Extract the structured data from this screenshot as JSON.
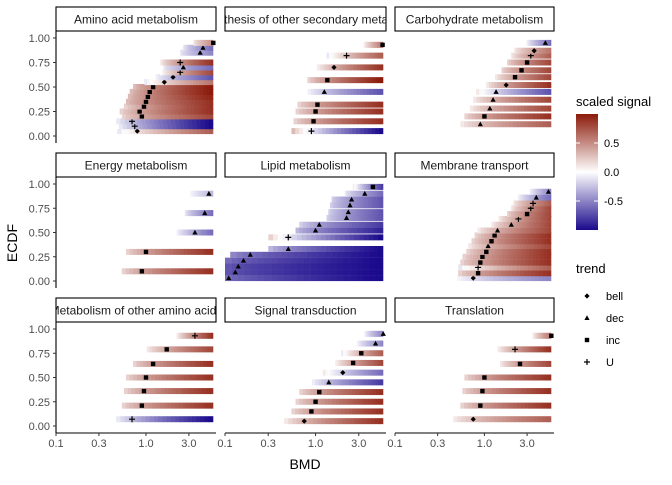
{
  "chart_data": {
    "type": "heatmap",
    "xlabel": "BMD",
    "ylabel": "ECDF",
    "x_scale": "log10",
    "xlim": [
      0.1,
      6
    ],
    "ylim": [
      0,
      1
    ],
    "x_ticks": [
      0.1,
      0.3,
      1.0,
      3.0
    ],
    "x_tick_labels": [
      "0.1",
      "0.3",
      "1.0",
      "3.0"
    ],
    "y_ticks": [
      0,
      0.25,
      0.5,
      0.75,
      1
    ],
    "y_tick_labels": [
      "0.00",
      "0.25",
      "0.50",
      "0.75",
      "1.00"
    ],
    "color_legend": {
      "title": "scaled signal",
      "ticks": [
        0.5,
        0.0,
        -0.5
      ],
      "tick_labels": [
        "0.5",
        "0.0",
        "-0.5"
      ],
      "range": [
        -1,
        1
      ],
      "low_color": "#1a0a8c",
      "mid_color": "#ffffff",
      "high_color": "#8b1a0a"
    },
    "shape_legend": {
      "title": "trend",
      "entries": [
        {
          "label": "bell",
          "shape": "diamond"
        },
        {
          "label": "dec",
          "shape": "triangle"
        },
        {
          "label": "inc",
          "shape": "square"
        },
        {
          "label": "U",
          "shape": "plus"
        }
      ]
    },
    "panels": [
      {
        "title": "Amino acid metabolism",
        "rows": [
          {
            "ecdf": 0.05,
            "bmd": 0.8,
            "trend": "bell",
            "s0": -0.1,
            "s1": 0.7
          },
          {
            "ecdf": 0.1,
            "bmd": 0.75,
            "trend": "U",
            "s0": 0.0,
            "s1": -1.0
          },
          {
            "ecdf": 0.15,
            "bmd": 0.7,
            "trend": "U",
            "s0": 0.0,
            "s1": -1.0
          },
          {
            "ecdf": 0.2,
            "bmd": 0.9,
            "trend": "inc",
            "s0": 0.2,
            "s1": 0.8
          },
          {
            "ecdf": 0.25,
            "bmd": 0.85,
            "trend": "inc",
            "s0": 0.2,
            "s1": 0.9
          },
          {
            "ecdf": 0.3,
            "bmd": 0.95,
            "trend": "inc",
            "s0": 0.2,
            "s1": 0.9
          },
          {
            "ecdf": 0.35,
            "bmd": 1.0,
            "trend": "inc",
            "s0": 0.3,
            "s1": 0.9
          },
          {
            "ecdf": 0.4,
            "bmd": 1.05,
            "trend": "inc",
            "s0": 0.3,
            "s1": 0.95
          },
          {
            "ecdf": 0.45,
            "bmd": 1.1,
            "trend": "inc",
            "s0": 0.3,
            "s1": 1.0
          },
          {
            "ecdf": 0.5,
            "bmd": 1.2,
            "trend": "inc",
            "s0": 0.3,
            "s1": 1.0
          },
          {
            "ecdf": 0.55,
            "bmd": 1.6,
            "trend": "bell",
            "s0": -0.1,
            "s1": 0.6
          },
          {
            "ecdf": 0.6,
            "bmd": 2.0,
            "trend": "bell",
            "s0": 0.0,
            "s1": -0.7
          },
          {
            "ecdf": 0.65,
            "bmd": 2.4,
            "trend": "U",
            "s0": 0.0,
            "s1": 0.8
          },
          {
            "ecdf": 0.7,
            "bmd": 2.6,
            "trend": "dec",
            "s0": -0.1,
            "s1": -0.6
          },
          {
            "ecdf": 0.75,
            "bmd": 2.4,
            "trend": "U",
            "s0": 0.1,
            "s1": 0.9
          },
          {
            "ecdf": 0.85,
            "bmd": 4.0,
            "trend": "dec",
            "s0": -0.1,
            "s1": -0.5
          },
          {
            "ecdf": 0.9,
            "bmd": 4.3,
            "trend": "dec",
            "s0": -0.1,
            "s1": -0.6
          },
          {
            "ecdf": 0.95,
            "bmd": 5.6,
            "trend": "inc",
            "s0": 0.1,
            "s1": 0.5
          }
        ]
      },
      {
        "title": "Biosynthesis of other secondary metabolites",
        "rows": [
          {
            "ecdf": 0.05,
            "bmd": 0.9,
            "trend": "U",
            "s0": 0.3,
            "s1": -1.0
          },
          {
            "ecdf": 0.15,
            "bmd": 0.95,
            "trend": "inc",
            "s0": 0.2,
            "s1": 0.9
          },
          {
            "ecdf": 0.25,
            "bmd": 1.0,
            "trend": "inc",
            "s0": 0.2,
            "s1": 0.9
          },
          {
            "ecdf": 0.32,
            "bmd": 1.05,
            "trend": "inc",
            "s0": 0.2,
            "s1": 0.9
          },
          {
            "ecdf": 0.45,
            "bmd": 1.25,
            "trend": "dec",
            "s0": 0.0,
            "s1": -0.7
          },
          {
            "ecdf": 0.57,
            "bmd": 1.35,
            "trend": "inc",
            "s0": 0.2,
            "s1": 1.0
          },
          {
            "ecdf": 0.7,
            "bmd": 1.6,
            "trend": "bell",
            "s0": 0.0,
            "s1": 0.9
          },
          {
            "ecdf": 0.82,
            "bmd": 2.2,
            "trend": "U",
            "s0": -0.1,
            "s1": 0.7
          },
          {
            "ecdf": 0.93,
            "bmd": 5.5,
            "trend": "inc",
            "s0": 0.0,
            "s1": 0.6
          }
        ]
      },
      {
        "title": "Carbohydrate metabolism",
        "rows": [
          {
            "ecdf": 0.12,
            "bmd": 0.9,
            "trend": "dec",
            "s0": 0.1,
            "s1": 0.7
          },
          {
            "ecdf": 0.2,
            "bmd": 1.0,
            "trend": "inc",
            "s0": 0.2,
            "s1": 0.9
          },
          {
            "ecdf": 0.28,
            "bmd": 1.15,
            "trend": "dec",
            "s0": 0.1,
            "s1": 0.8
          },
          {
            "ecdf": 0.37,
            "bmd": 1.25,
            "trend": "dec",
            "s0": 0.1,
            "s1": 0.8
          },
          {
            "ecdf": 0.45,
            "bmd": 1.35,
            "trend": "dec",
            "s0": 0.1,
            "s1": -0.7
          },
          {
            "ecdf": 0.52,
            "bmd": 1.75,
            "trend": "bell",
            "s0": 0.1,
            "s1": 0.9
          },
          {
            "ecdf": 0.6,
            "bmd": 2.2,
            "trend": "inc",
            "s0": 0.1,
            "s1": 0.8
          },
          {
            "ecdf": 0.67,
            "bmd": 2.6,
            "trend": "inc",
            "s0": 0.2,
            "s1": 0.8
          },
          {
            "ecdf": 0.75,
            "bmd": 3.0,
            "trend": "inc",
            "s0": 0.2,
            "s1": 0.8
          },
          {
            "ecdf": 0.82,
            "bmd": 3.3,
            "trend": "U",
            "s0": 0.1,
            "s1": 0.7
          },
          {
            "ecdf": 0.87,
            "bmd": 3.6,
            "trend": "bell",
            "s0": 0.1,
            "s1": 0.6
          },
          {
            "ecdf": 0.95,
            "bmd": 4.8,
            "trend": "dec",
            "s0": 0.0,
            "s1": -0.6
          }
        ]
      },
      {
        "title": "Energy metabolism",
        "rows": [
          {
            "ecdf": 0.1,
            "bmd": 0.9,
            "trend": "inc",
            "s0": 0.2,
            "s1": 0.9
          },
          {
            "ecdf": 0.3,
            "bmd": 1.0,
            "trend": "inc",
            "s0": 0.2,
            "s1": 0.9
          },
          {
            "ecdf": 0.5,
            "bmd": 3.5,
            "trend": "dec",
            "s0": 0.0,
            "s1": -0.6
          },
          {
            "ecdf": 0.7,
            "bmd": 4.5,
            "trend": "dec",
            "s0": -0.1,
            "s1": -0.6
          },
          {
            "ecdf": 0.9,
            "bmd": 5.0,
            "trend": "dec",
            "s0": 0.0,
            "s1": -0.3
          }
        ]
      },
      {
        "title": "Lipid metabolism",
        "rows": [
          {
            "ecdf": 0.03,
            "bmd": 0.11,
            "trend": "dec",
            "s0": -0.6,
            "s1": -1.0
          },
          {
            "ecdf": 0.09,
            "bmd": 0.13,
            "trend": "dec",
            "s0": -0.7,
            "s1": -1.0
          },
          {
            "ecdf": 0.15,
            "bmd": 0.14,
            "trend": "dec",
            "s0": -0.7,
            "s1": -1.0
          },
          {
            "ecdf": 0.21,
            "bmd": 0.16,
            "trend": "dec",
            "s0": -0.6,
            "s1": -1.0
          },
          {
            "ecdf": 0.27,
            "bmd": 0.19,
            "trend": "dec",
            "s0": -0.5,
            "s1": -1.0
          },
          {
            "ecdf": 0.33,
            "bmd": 0.5,
            "trend": "dec",
            "s0": -0.3,
            "s1": -1.0
          },
          {
            "ecdf": 0.45,
            "bmd": 0.5,
            "trend": "U",
            "s0": 0.2,
            "s1": -1.0
          },
          {
            "ecdf": 0.52,
            "bmd": 1.0,
            "trend": "dec",
            "s0": -0.3,
            "s1": -0.9
          },
          {
            "ecdf": 0.58,
            "bmd": 1.1,
            "trend": "dec",
            "s0": -0.2,
            "s1": -0.8
          },
          {
            "ecdf": 0.65,
            "bmd": 2.2,
            "trend": "dec",
            "s0": -0.2,
            "s1": -0.7
          },
          {
            "ecdf": 0.71,
            "bmd": 2.3,
            "trend": "dec",
            "s0": -0.2,
            "s1": -0.7
          },
          {
            "ecdf": 0.78,
            "bmd": 2.4,
            "trend": "dec",
            "s0": -0.2,
            "s1": -0.7
          },
          {
            "ecdf": 0.84,
            "bmd": 2.5,
            "trend": "dec",
            "s0": -0.2,
            "s1": -0.7
          },
          {
            "ecdf": 0.9,
            "bmd": 3.5,
            "trend": "dec",
            "s0": -0.1,
            "s1": -0.6
          },
          {
            "ecdf": 0.97,
            "bmd": 4.3,
            "trend": "inc",
            "s0": 0.1,
            "s1": -0.8
          }
        ]
      },
      {
        "title": "Membrane transport",
        "rows": [
          {
            "ecdf": 0.03,
            "bmd": 0.75,
            "trend": "bell",
            "s0": 0.0,
            "s1": -0.5
          },
          {
            "ecdf": 0.08,
            "bmd": 0.85,
            "trend": "inc",
            "s0": 0.2,
            "s1": 0.9
          },
          {
            "ecdf": 0.14,
            "bmd": 0.85,
            "trend": "U",
            "s0": -0.1,
            "s1": 0.7
          },
          {
            "ecdf": 0.19,
            "bmd": 0.9,
            "trend": "inc",
            "s0": 0.2,
            "s1": 0.9
          },
          {
            "ecdf": 0.25,
            "bmd": 0.95,
            "trend": "inc",
            "s0": 0.2,
            "s1": 0.9
          },
          {
            "ecdf": 0.3,
            "bmd": 1.05,
            "trend": "inc",
            "s0": 0.2,
            "s1": 0.9
          },
          {
            "ecdf": 0.36,
            "bmd": 1.1,
            "trend": "dec",
            "s0": 0.1,
            "s1": 0.8
          },
          {
            "ecdf": 0.41,
            "bmd": 1.2,
            "trend": "inc",
            "s0": 0.2,
            "s1": 0.9
          },
          {
            "ecdf": 0.47,
            "bmd": 1.3,
            "trend": "inc",
            "s0": 0.2,
            "s1": 0.9
          },
          {
            "ecdf": 0.52,
            "bmd": 1.4,
            "trend": "dec",
            "s0": 0.1,
            "s1": 0.8
          },
          {
            "ecdf": 0.58,
            "bmd": 2.0,
            "trend": "dec",
            "s0": 0.1,
            "s1": 0.8
          },
          {
            "ecdf": 0.64,
            "bmd": 2.4,
            "trend": "U",
            "s0": 0.1,
            "s1": 0.8
          },
          {
            "ecdf": 0.69,
            "bmd": 3.0,
            "trend": "inc",
            "s0": 0.2,
            "s1": 0.8
          },
          {
            "ecdf": 0.75,
            "bmd": 3.3,
            "trend": "U",
            "s0": 0.1,
            "s1": 0.8
          },
          {
            "ecdf": 0.8,
            "bmd": 3.5,
            "trend": "U",
            "s0": 0.1,
            "s1": 0.7
          },
          {
            "ecdf": 0.86,
            "bmd": 3.8,
            "trend": "dec",
            "s0": 0.0,
            "s1": -0.6
          },
          {
            "ecdf": 0.92,
            "bmd": 5.2,
            "trend": "dec",
            "s0": 0.0,
            "s1": -0.5
          }
        ]
      },
      {
        "title": "Metabolism of other amino acids",
        "rows": [
          {
            "ecdf": 0.07,
            "bmd": 0.7,
            "trend": "U",
            "s0": 0.0,
            "s1": -1.0
          },
          {
            "ecdf": 0.21,
            "bmd": 0.9,
            "trend": "inc",
            "s0": 0.2,
            "s1": 0.9
          },
          {
            "ecdf": 0.36,
            "bmd": 0.95,
            "trend": "inc",
            "s0": 0.2,
            "s1": 0.9
          },
          {
            "ecdf": 0.5,
            "bmd": 1.0,
            "trend": "inc",
            "s0": 0.2,
            "s1": 0.9
          },
          {
            "ecdf": 0.64,
            "bmd": 1.2,
            "trend": "inc",
            "s0": 0.2,
            "s1": 0.9
          },
          {
            "ecdf": 0.79,
            "bmd": 1.7,
            "trend": "inc",
            "s0": 0.1,
            "s1": 0.8
          },
          {
            "ecdf": 0.93,
            "bmd": 3.5,
            "trend": "U",
            "s0": 0.0,
            "s1": 0.9
          }
        ]
      },
      {
        "title": "Signal transduction",
        "rows": [
          {
            "ecdf": 0.05,
            "bmd": 0.75,
            "trend": "bell",
            "s0": 0.1,
            "s1": 0.9
          },
          {
            "ecdf": 0.15,
            "bmd": 0.9,
            "trend": "inc",
            "s0": 0.2,
            "s1": 0.9
          },
          {
            "ecdf": 0.25,
            "bmd": 1.0,
            "trend": "inc",
            "s0": 0.2,
            "s1": 0.9
          },
          {
            "ecdf": 0.35,
            "bmd": 1.1,
            "trend": "inc",
            "s0": 0.2,
            "s1": 0.9
          },
          {
            "ecdf": 0.45,
            "bmd": 1.4,
            "trend": "dec",
            "s0": 0.0,
            "s1": -0.8
          },
          {
            "ecdf": 0.55,
            "bmd": 2.0,
            "trend": "bell",
            "s0": 0.1,
            "s1": -0.6
          },
          {
            "ecdf": 0.65,
            "bmd": 2.6,
            "trend": "inc",
            "s0": 0.0,
            "s1": 0.8
          },
          {
            "ecdf": 0.75,
            "bmd": 3.2,
            "trend": "inc",
            "s0": -0.1,
            "s1": 0.7
          },
          {
            "ecdf": 0.85,
            "bmd": 4.6,
            "trend": "dec",
            "s0": 0.0,
            "s1": -0.5
          },
          {
            "ecdf": 0.95,
            "bmd": 5.6,
            "trend": "dec",
            "s0": 0.0,
            "s1": -0.5
          }
        ]
      },
      {
        "title": "Translation",
        "rows": [
          {
            "ecdf": 0.07,
            "bmd": 0.75,
            "trend": "bell",
            "s0": 0.1,
            "s1": 0.7
          },
          {
            "ecdf": 0.21,
            "bmd": 0.9,
            "trend": "inc",
            "s0": 0.2,
            "s1": 0.9
          },
          {
            "ecdf": 0.36,
            "bmd": 0.95,
            "trend": "inc",
            "s0": 0.2,
            "s1": 0.9
          },
          {
            "ecdf": 0.5,
            "bmd": 1.0,
            "trend": "inc",
            "s0": 0.2,
            "s1": 0.9
          },
          {
            "ecdf": 0.64,
            "bmd": 2.5,
            "trend": "inc",
            "s0": 0.1,
            "s1": 0.8
          },
          {
            "ecdf": 0.79,
            "bmd": 2.2,
            "trend": "U",
            "s0": 0.0,
            "s1": 0.9
          },
          {
            "ecdf": 0.93,
            "bmd": 5.6,
            "trend": "inc",
            "s0": 0.0,
            "s1": 0.6
          }
        ]
      }
    ]
  }
}
